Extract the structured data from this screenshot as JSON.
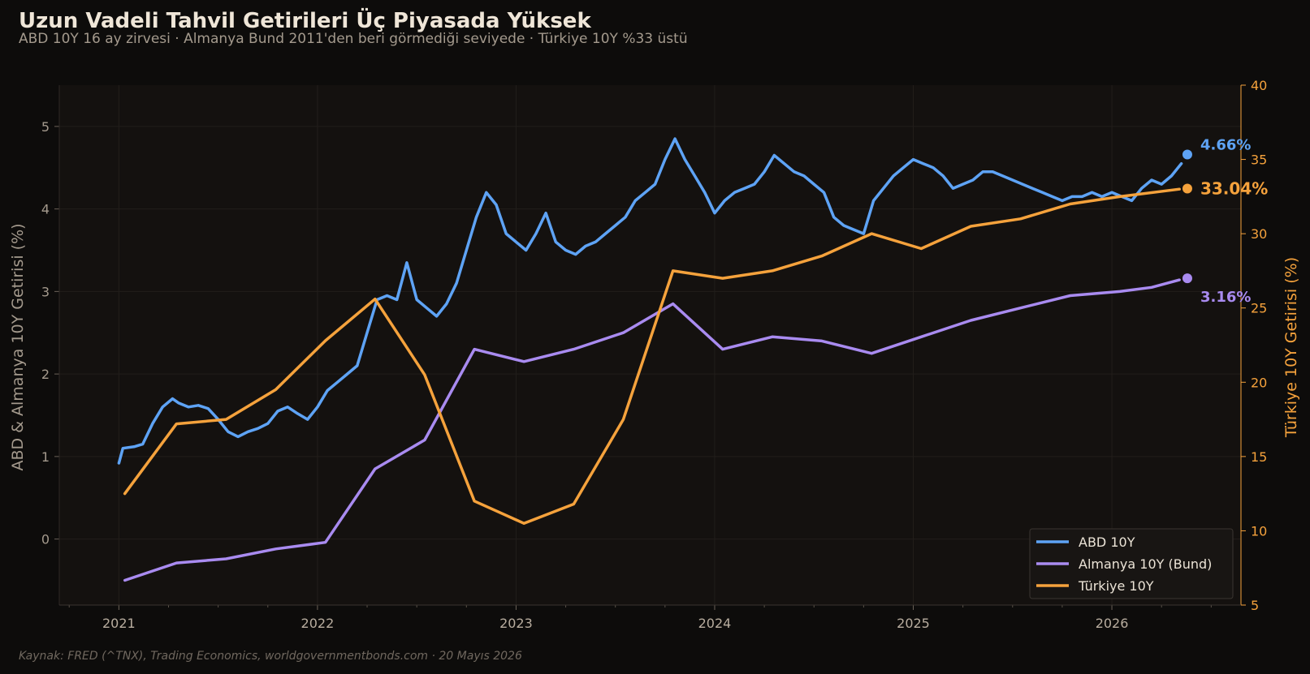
{
  "header": {
    "title": "Uzun Vadeli Tahvil Getirileri Üç Piyasada Yüksek",
    "subtitle": "ABD 10Y 16 ay zirvesi · Almanya Bund 2011'den beri görmediği seviyede · Türkiye 10Y %33 üstü"
  },
  "footer": {
    "source": "Kaynak: FRED (^TNX), Trading Economics, worldgovernmentbonds.com · 20 Mayıs 2026"
  },
  "colors": {
    "background": "#0d0c0b",
    "plot_background": "#14110f",
    "us": "#5ea3f5",
    "de": "#a98bf0",
    "tr": "#f5a23c"
  },
  "chart_data": {
    "type": "line",
    "x_axis": {
      "unit": "year",
      "range": [
        2020.7,
        2026.65
      ],
      "ticks": [
        "2021",
        "2022",
        "2023",
        "2024",
        "2025",
        "2026"
      ],
      "minor_ticks": "quarterly"
    },
    "y_left": {
      "label": "ABD & Almanya 10Y Getirisi (%)",
      "range": [
        -0.8,
        5.5
      ],
      "ticks": [
        "0",
        "1",
        "2",
        "3",
        "4",
        "5"
      ]
    },
    "y_right": {
      "label": "Türkiye 10Y Getirisi (%)",
      "range": [
        5,
        40
      ],
      "ticks": [
        "5",
        "10",
        "15",
        "20",
        "25",
        "30",
        "35",
        "40"
      ]
    },
    "grid": true,
    "legend": "bottom-right",
    "series": [
      {
        "name": "ABD 10Y",
        "key": "us",
        "axis": "left",
        "end_label": "4.66%",
        "end_point": [
          2026.38,
          4.66
        ],
        "points": [
          [
            2021.0,
            0.92
          ],
          [
            2021.02,
            1.1
          ],
          [
            2021.08,
            1.12
          ],
          [
            2021.12,
            1.15
          ],
          [
            2021.17,
            1.4
          ],
          [
            2021.22,
            1.6
          ],
          [
            2021.27,
            1.7
          ],
          [
            2021.3,
            1.65
          ],
          [
            2021.35,
            1.6
          ],
          [
            2021.4,
            1.62
          ],
          [
            2021.45,
            1.58
          ],
          [
            2021.5,
            1.45
          ],
          [
            2021.55,
            1.3
          ],
          [
            2021.6,
            1.24
          ],
          [
            2021.65,
            1.3
          ],
          [
            2021.7,
            1.34
          ],
          [
            2021.75,
            1.4
          ],
          [
            2021.8,
            1.55
          ],
          [
            2021.85,
            1.6
          ],
          [
            2021.9,
            1.52
          ],
          [
            2021.95,
            1.45
          ],
          [
            2022.0,
            1.6
          ],
          [
            2022.05,
            1.8
          ],
          [
            2022.1,
            1.9
          ],
          [
            2022.15,
            2.0
          ],
          [
            2022.2,
            2.1
          ],
          [
            2022.25,
            2.5
          ],
          [
            2022.3,
            2.9
          ],
          [
            2022.35,
            2.95
          ],
          [
            2022.4,
            2.9
          ],
          [
            2022.45,
            3.35
          ],
          [
            2022.5,
            2.9
          ],
          [
            2022.55,
            2.8
          ],
          [
            2022.6,
            2.7
          ],
          [
            2022.65,
            2.85
          ],
          [
            2022.7,
            3.1
          ],
          [
            2022.75,
            3.5
          ],
          [
            2022.8,
            3.9
          ],
          [
            2022.85,
            4.2
          ],
          [
            2022.9,
            4.05
          ],
          [
            2022.95,
            3.7
          ],
          [
            2023.0,
            3.6
          ],
          [
            2023.05,
            3.5
          ],
          [
            2023.1,
            3.7
          ],
          [
            2023.15,
            3.95
          ],
          [
            2023.2,
            3.6
          ],
          [
            2023.25,
            3.5
          ],
          [
            2023.3,
            3.45
          ],
          [
            2023.35,
            3.55
          ],
          [
            2023.4,
            3.6
          ],
          [
            2023.45,
            3.7
          ],
          [
            2023.5,
            3.8
          ],
          [
            2023.55,
            3.9
          ],
          [
            2023.6,
            4.1
          ],
          [
            2023.65,
            4.2
          ],
          [
            2023.7,
            4.3
          ],
          [
            2023.75,
            4.6
          ],
          [
            2023.8,
            4.85
          ],
          [
            2023.85,
            4.6
          ],
          [
            2023.9,
            4.4
          ],
          [
            2023.95,
            4.2
          ],
          [
            2024.0,
            3.95
          ],
          [
            2024.05,
            4.1
          ],
          [
            2024.1,
            4.2
          ],
          [
            2024.15,
            4.25
          ],
          [
            2024.2,
            4.3
          ],
          [
            2024.25,
            4.45
          ],
          [
            2024.3,
            4.65
          ],
          [
            2024.35,
            4.55
          ],
          [
            2024.4,
            4.45
          ],
          [
            2024.45,
            4.4
          ],
          [
            2024.5,
            4.3
          ],
          [
            2024.55,
            4.2
          ],
          [
            2024.6,
            3.9
          ],
          [
            2024.65,
            3.8
          ],
          [
            2024.7,
            3.75
          ],
          [
            2024.75,
            3.7
          ],
          [
            2024.8,
            4.1
          ],
          [
            2024.85,
            4.25
          ],
          [
            2024.9,
            4.4
          ],
          [
            2024.95,
            4.5
          ],
          [
            2025.0,
            4.6
          ],
          [
            2025.05,
            4.55
          ],
          [
            2025.1,
            4.5
          ],
          [
            2025.15,
            4.4
          ],
          [
            2025.2,
            4.25
          ],
          [
            2025.25,
            4.3
          ],
          [
            2025.3,
            4.35
          ],
          [
            2025.35,
            4.45
          ],
          [
            2025.4,
            4.45
          ],
          [
            2025.45,
            4.4
          ],
          [
            2025.5,
            4.35
          ],
          [
            2025.55,
            4.3
          ],
          [
            2025.6,
            4.25
          ],
          [
            2025.65,
            4.2
          ],
          [
            2025.7,
            4.15
          ],
          [
            2025.75,
            4.1
          ],
          [
            2025.8,
            4.15
          ],
          [
            2025.85,
            4.15
          ],
          [
            2025.9,
            4.2
          ],
          [
            2025.95,
            4.15
          ],
          [
            2026.0,
            4.2
          ],
          [
            2026.05,
            4.15
          ],
          [
            2026.1,
            4.1
          ],
          [
            2026.15,
            4.25
          ],
          [
            2026.2,
            4.35
          ],
          [
            2026.25,
            4.3
          ],
          [
            2026.3,
            4.4
          ],
          [
            2026.35,
            4.55
          ]
        ]
      },
      {
        "name": "Almanya 10Y (Bund)",
        "key": "de",
        "axis": "left",
        "end_label": "3.16%",
        "end_point": [
          2026.38,
          3.16
        ],
        "points": [
          [
            2021.03,
            -0.5
          ],
          [
            2021.29,
            -0.29
          ],
          [
            2021.54,
            -0.24
          ],
          [
            2021.79,
            -0.12
          ],
          [
            2022.04,
            -0.04
          ],
          [
            2022.29,
            0.85
          ],
          [
            2022.54,
            1.2
          ],
          [
            2022.79,
            2.3
          ],
          [
            2023.04,
            2.15
          ],
          [
            2023.29,
            2.3
          ],
          [
            2023.54,
            2.5
          ],
          [
            2023.79,
            2.85
          ],
          [
            2024.04,
            2.3
          ],
          [
            2024.29,
            2.45
          ],
          [
            2024.54,
            2.4
          ],
          [
            2024.79,
            2.25
          ],
          [
            2025.04,
            2.45
          ],
          [
            2025.29,
            2.65
          ],
          [
            2025.54,
            2.8
          ],
          [
            2025.79,
            2.95
          ],
          [
            2026.04,
            3.0
          ],
          [
            2026.2,
            3.05
          ],
          [
            2026.34,
            3.14
          ]
        ]
      },
      {
        "name": "Türkiye 10Y",
        "key": "tr",
        "axis": "right",
        "end_label": "33.04%",
        "end_point": [
          2026.38,
          33.04
        ],
        "points": [
          [
            2021.03,
            12.5
          ],
          [
            2021.29,
            17.2
          ],
          [
            2021.54,
            17.5
          ],
          [
            2021.79,
            19.5
          ],
          [
            2022.04,
            22.8
          ],
          [
            2022.29,
            25.6
          ],
          [
            2022.54,
            20.5
          ],
          [
            2022.79,
            12.0
          ],
          [
            2023.04,
            10.5
          ],
          [
            2023.29,
            11.8
          ],
          [
            2023.54,
            17.5
          ],
          [
            2023.79,
            27.5
          ],
          [
            2024.04,
            27.0
          ],
          [
            2024.29,
            27.5
          ],
          [
            2024.54,
            28.5
          ],
          [
            2024.79,
            30.0
          ],
          [
            2025.04,
            29.0
          ],
          [
            2025.29,
            30.5
          ],
          [
            2025.54,
            31.0
          ],
          [
            2025.79,
            32.0
          ],
          [
            2026.04,
            32.5
          ],
          [
            2026.34,
            33.0
          ]
        ]
      }
    ]
  }
}
